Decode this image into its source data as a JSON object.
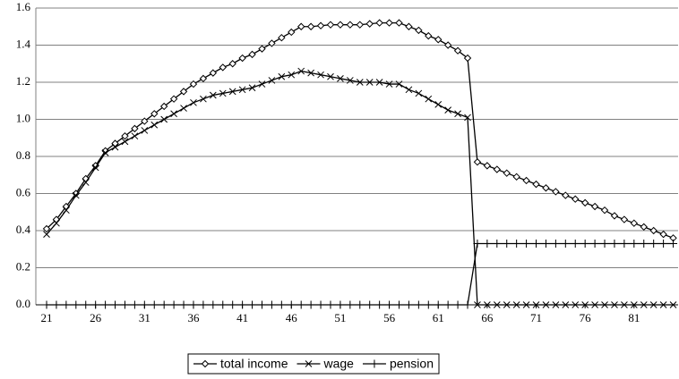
{
  "chart_data": {
    "type": "line",
    "x": [
      21,
      22,
      23,
      24,
      25,
      26,
      27,
      28,
      29,
      30,
      31,
      32,
      33,
      34,
      35,
      36,
      37,
      38,
      39,
      40,
      41,
      42,
      43,
      44,
      45,
      46,
      47,
      48,
      49,
      50,
      51,
      52,
      53,
      54,
      55,
      56,
      57,
      58,
      59,
      60,
      61,
      62,
      63,
      64,
      65,
      66,
      67,
      68,
      69,
      70,
      71,
      72,
      73,
      74,
      75,
      76,
      77,
      78,
      79,
      80,
      81,
      82,
      83,
      84,
      85
    ],
    "series": [
      {
        "name": "total income",
        "color": "#000000",
        "marker": "diamond",
        "values": [
          0.41,
          0.46,
          0.53,
          0.6,
          0.68,
          0.75,
          0.83,
          0.87,
          0.91,
          0.95,
          0.99,
          1.03,
          1.07,
          1.11,
          1.15,
          1.19,
          1.22,
          1.25,
          1.28,
          1.3,
          1.33,
          1.35,
          1.38,
          1.41,
          1.44,
          1.47,
          1.5,
          1.5,
          1.505,
          1.51,
          1.51,
          1.51,
          1.51,
          1.515,
          1.52,
          1.52,
          1.52,
          1.5,
          1.48,
          1.45,
          1.43,
          1.4,
          1.37,
          1.33,
          0.77,
          0.75,
          0.73,
          0.71,
          0.69,
          0.67,
          0.65,
          0.63,
          0.61,
          0.59,
          0.57,
          0.55,
          0.53,
          0.51,
          0.48,
          0.46,
          0.44,
          0.42,
          0.4,
          0.38,
          0.36
        ]
      },
      {
        "name": "wage",
        "color": "#000000",
        "marker": "x",
        "values": [
          0.38,
          0.44,
          0.51,
          0.59,
          0.66,
          0.74,
          0.82,
          0.85,
          0.88,
          0.91,
          0.94,
          0.97,
          1.0,
          1.03,
          1.06,
          1.09,
          1.11,
          1.13,
          1.14,
          1.15,
          1.16,
          1.17,
          1.19,
          1.21,
          1.23,
          1.24,
          1.26,
          1.25,
          1.24,
          1.23,
          1.22,
          1.21,
          1.2,
          1.2,
          1.2,
          1.19,
          1.19,
          1.16,
          1.14,
          1.11,
          1.08,
          1.05,
          1.03,
          1.01,
          0,
          0,
          0,
          0,
          0,
          0,
          0,
          0,
          0,
          0,
          0,
          0,
          0,
          0,
          0,
          0,
          0,
          0,
          0,
          0,
          0
        ]
      },
      {
        "name": "pension",
        "color": "#000000",
        "marker": "plus",
        "values": [
          0,
          0,
          0,
          0,
          0,
          0,
          0,
          0,
          0,
          0,
          0,
          0,
          0,
          0,
          0,
          0,
          0,
          0,
          0,
          0,
          0,
          0,
          0,
          0,
          0,
          0,
          0,
          0,
          0,
          0,
          0,
          0,
          0,
          0,
          0,
          0,
          0,
          0,
          0,
          0,
          0,
          0,
          0,
          0,
          0.33,
          0.33,
          0.33,
          0.33,
          0.33,
          0.33,
          0.33,
          0.33,
          0.33,
          0.33,
          0.33,
          0.33,
          0.33,
          0.33,
          0.33,
          0.33,
          0.33,
          0.33,
          0.33,
          0.33,
          0.33
        ]
      }
    ],
    "xlim": [
      19.9,
      85.5
    ],
    "xticks": [
      21,
      26,
      31,
      36,
      41,
      46,
      51,
      56,
      61,
      66,
      71,
      76,
      81
    ],
    "ylim": [
      0,
      1.6
    ],
    "yticks": [
      {
        "value": 0,
        "label": "0.0"
      },
      {
        "value": 0.2,
        "label": "0.2"
      },
      {
        "value": 0.4,
        "label": "0.4"
      },
      {
        "value": 0.6,
        "label": "0.6"
      },
      {
        "value": 0.8,
        "label": "0.8"
      },
      {
        "value": 1.0,
        "label": "1.0"
      },
      {
        "value": 1.2,
        "label": "1.2"
      },
      {
        "value": 1.4,
        "label": "1.4"
      },
      {
        "value": 1.6,
        "label": "1.6"
      }
    ],
    "grid": true,
    "legend": "bottom"
  }
}
